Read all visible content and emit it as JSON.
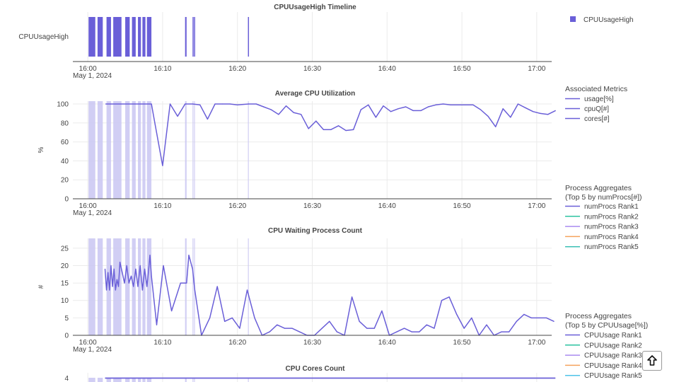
{
  "colors": {
    "series": "#6A5FD8",
    "shade": "#C9C6F2",
    "rank2": "#2CC3A0",
    "rank3": "#A98BF0",
    "rank4": "#F5A25D",
    "rank5": "#3CC0B4",
    "cpurank5": "#4FC3E8"
  },
  "icons": {
    "scroll": "arrow-up-icon"
  },
  "chart_data": [
    {
      "type": "timeline",
      "title": "CPUUsageHigh Timeline",
      "category_label": "CPUUsageHigh",
      "x_ticks": [
        "16:00",
        "16:10",
        "16:20",
        "16:30",
        "16:40",
        "16:50",
        "17:00"
      ],
      "x_date": "May 1, 2024",
      "xlim": [
        "15:58",
        "17:02"
      ],
      "legend": [
        {
          "name": "CPUUsageHigh"
        }
      ],
      "events": [
        [
          "16:00.1",
          "16:01.0"
        ],
        [
          "16:01.3",
          "16:02.0"
        ],
        [
          "16:02.5",
          "16:03.1"
        ],
        [
          "16:03.4",
          "16:04.5"
        ],
        [
          "16:05.0",
          "16:05.6"
        ],
        [
          "16:05.9",
          "16:06.4"
        ],
        [
          "16:06.7",
          "16:07.1"
        ],
        [
          "16:07.3",
          "16:07.7"
        ],
        [
          "16:07.9",
          "16:08.5"
        ],
        [
          "16:13.0",
          "16:13.2"
        ],
        [
          "16:14.0",
          "16:14.1"
        ],
        [
          "16:14.2",
          "16:14.3"
        ],
        [
          "16:21.4",
          "16:21.5"
        ]
      ]
    },
    {
      "type": "line",
      "title": "Average CPU Utilization",
      "ylabel": "%",
      "ylim": [
        0,
        100
      ],
      "y_ticks": [
        0,
        20,
        40,
        60,
        80,
        100
      ],
      "x_ticks": [
        "16:00",
        "16:10",
        "16:20",
        "16:30",
        "16:40",
        "16:50",
        "17:00"
      ],
      "x_date": "May 1, 2024",
      "legend_title": "Associated Metrics",
      "legend": [
        {
          "name": "usage[%]"
        },
        {
          "name": "cpuQ[#]"
        },
        {
          "name": "cores[#]"
        }
      ],
      "series": [
        {
          "name": "usage[%]",
          "x": [
            "16:02.4",
            "16:08.5",
            "16:09.0",
            "16:10.0",
            "16:11.0",
            "16:12.0",
            "16:13.0",
            "16:14.0",
            "16:15.0",
            "16:16.0",
            "16:17.0",
            "16:18.0",
            "16:19.0",
            "16:20.0",
            "16:21.5",
            "16:22.5",
            "16:23.5",
            "16:24.5",
            "16:25.5",
            "16:26.5",
            "16:27.5",
            "16:28.5",
            "16:29.5",
            "16:30.5",
            "16:31.5",
            "16:32.5",
            "16:33.5",
            "16:34.5",
            "16:35.5",
            "16:36.5",
            "16:37.5",
            "16:38.5",
            "16:39.5",
            "16:40.5",
            "16:41.5",
            "16:42.5",
            "16:43.5",
            "16:44.5",
            "16:45.5",
            "16:46.5",
            "16:47.5",
            "16:48.5",
            "16:49.5",
            "16:50.5",
            "16:51.5",
            "16:52.5",
            "16:53.5",
            "16:54.5",
            "16:55.5",
            "16:56.5",
            "16:57.5",
            "16:58.5",
            "16:59.5",
            "17:00.5",
            "17:01.5",
            "17:02.5"
          ],
          "values": [
            100,
            100,
            78,
            35,
            100,
            87,
            100,
            100,
            99,
            84,
            100,
            100,
            100,
            99,
            100,
            100,
            97,
            94,
            89,
            98,
            91,
            89,
            74,
            82,
            73,
            73,
            77,
            72,
            73,
            94,
            99,
            86,
            98,
            92,
            95,
            97,
            93,
            93,
            97,
            99,
            100,
            99,
            99,
            99,
            99,
            94,
            87,
            76,
            95,
            86,
            100,
            96,
            92,
            90,
            89,
            93
          ]
        }
      ]
    },
    {
      "type": "line",
      "title": "CPU Waiting Process Count",
      "ylabel": "#",
      "ylim": [
        0,
        27
      ],
      "y_ticks": [
        0,
        5,
        10,
        15,
        20,
        25
      ],
      "x_ticks": [
        "16:00",
        "16:10",
        "16:20",
        "16:30",
        "16:40",
        "16:50",
        "17:00"
      ],
      "x_date": "May 1, 2024",
      "legend_title": "Process Aggregates\n(Top 5 by numProcs[#])",
      "legend": [
        {
          "name": "numProcs Rank1"
        },
        {
          "name": "numProcs Rank2"
        },
        {
          "name": "numProcs Rank3"
        },
        {
          "name": "numProcs Rank4"
        },
        {
          "name": "numProcs Rank5"
        }
      ],
      "series": [
        {
          "name": "cpuQ[#]",
          "x": [
            "16:02.3",
            "16:02.5",
            "16:02.7",
            "16:02.9",
            "16:03.1",
            "16:03.3",
            "16:03.5",
            "16:03.7",
            "16:03.9",
            "16:04.1",
            "16:04.3",
            "16:04.6",
            "16:04.9",
            "16:05.2",
            "16:05.5",
            "16:05.8",
            "16:06.1",
            "16:06.4",
            "16:06.7",
            "16:07.0",
            "16:07.3",
            "16:07.6",
            "16:07.9",
            "16:08.1",
            "16:08.3",
            "16:08.5",
            "16:09.2",
            "16:10.1",
            "16:11.2",
            "16:12.4",
            "16:13.2",
            "16:13.5",
            "16:14.0",
            "16:14.3",
            "16:15.2",
            "16:16.3",
            "16:17.3",
            "16:18.3",
            "16:19.3",
            "16:20.3",
            "16:21.3",
            "16:22.3",
            "16:23.3",
            "16:24.3",
            "16:25.3",
            "16:26.3",
            "16:27.3",
            "16:28.3",
            "16:29.3",
            "16:30.3",
            "16:31.3",
            "16:32.3",
            "16:33.3",
            "16:34.3",
            "16:35.3",
            "16:36.3",
            "16:37.3",
            "16:38.3",
            "16:39.3",
            "16:40.3",
            "16:41.3",
            "16:42.3",
            "16:43.3",
            "16:44.3",
            "16:45.3",
            "16:46.3",
            "16:47.3",
            "16:48.3",
            "16:49.3",
            "16:50.3",
            "16:51.3",
            "16:52.3",
            "16:53.3",
            "16:54.3",
            "16:55.3",
            "16:56.3",
            "16:57.3",
            "16:58.3",
            "16:59.3",
            "17:00.3",
            "17:01.3",
            "17:02.3"
          ],
          "values": [
            19,
            13,
            18,
            13,
            20,
            14,
            19,
            13,
            16,
            14,
            21,
            18,
            15,
            20,
            15,
            17,
            14,
            19,
            14,
            20,
            13,
            19,
            14,
            18,
            23,
            17,
            3,
            20,
            7,
            15,
            15,
            23,
            19,
            13,
            0,
            5,
            14,
            4,
            5,
            2,
            13,
            5,
            0,
            1,
            3,
            2,
            2,
            1,
            0,
            0,
            2,
            4,
            1,
            0,
            11,
            4,
            2,
            2,
            7,
            0,
            1,
            2,
            1,
            1,
            3,
            2,
            10,
            11,
            6,
            2,
            5,
            0,
            3,
            0,
            1,
            1,
            4,
            6,
            5,
            5,
            5,
            4
          ]
        }
      ]
    },
    {
      "type": "line",
      "title": "CPU Cores Count",
      "ylabel": "",
      "y_ticks": [
        4
      ],
      "legend_title": "Process Aggregates\n(Top 5 by CPUUsage[%])",
      "legend": [
        {
          "name": "CPUUsage Rank1"
        },
        {
          "name": "CPUUsage Rank2"
        },
        {
          "name": "CPUUsage Rank3"
        },
        {
          "name": "CPUUsage Rank4"
        },
        {
          "name": "CPUUsage Rank5"
        }
      ],
      "series": [
        {
          "name": "cores[#]",
          "x": [
            "16:02.3",
            "17:02.5"
          ],
          "values": [
            4,
            4
          ]
        }
      ]
    }
  ]
}
